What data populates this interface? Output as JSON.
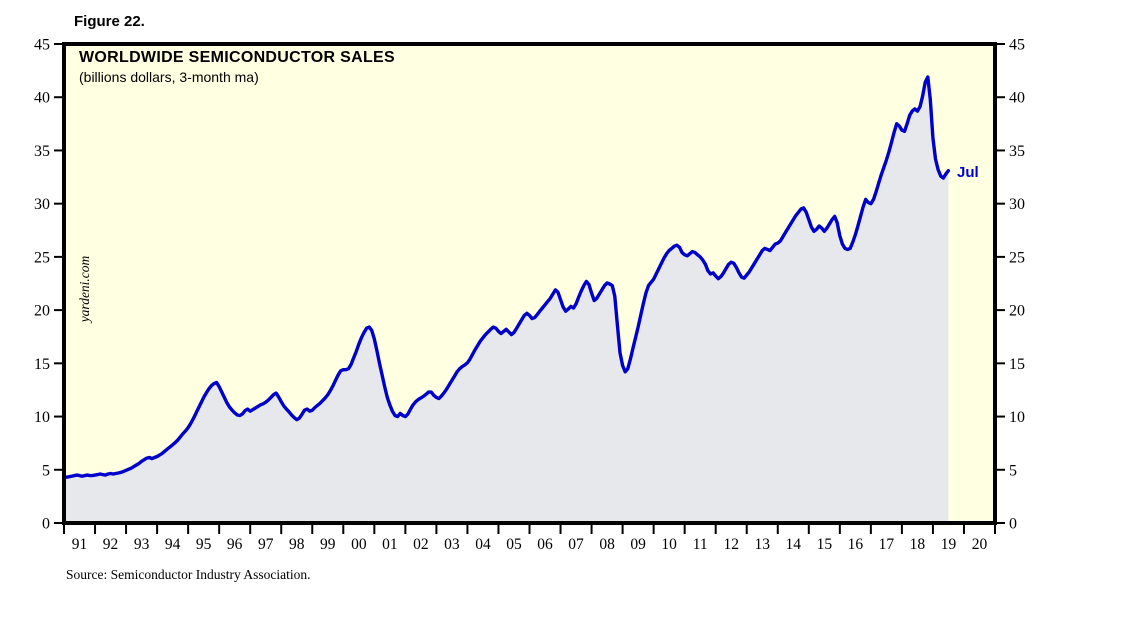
{
  "figure_label": "Figure 22.",
  "chart": {
    "title": "WORLDWIDE SEMICONDUCTOR SALES",
    "subtitle": "(billions dollars, 3-month ma)",
    "watermark": "yardeni.com",
    "end_label": "Jul",
    "source": "Source: Semiconductor Industry Association."
  },
  "colors": {
    "line": "#0000CD",
    "plot_background": "#FFFFE1",
    "area_fill": "#E7E8EC",
    "axis": "#000000",
    "annotation": "#0000CD"
  },
  "chart_data": {
    "type": "line",
    "title": "WORLDWIDE SEMICONDUCTOR SALES",
    "subtitle": "(billions dollars, 3-month ma)",
    "grid": false,
    "legend": "none",
    "ylim": [
      0,
      45
    ],
    "y_ticks": [
      0,
      5,
      10,
      15,
      20,
      25,
      30,
      35,
      40,
      45
    ],
    "y_axis_sides": [
      "left",
      "right"
    ],
    "x_axis_tick_labels": [
      "91",
      "92",
      "93",
      "94",
      "95",
      "96",
      "97",
      "98",
      "99",
      "00",
      "01",
      "02",
      "03",
      "04",
      "05",
      "06",
      "07",
      "08",
      "09",
      "10",
      "11",
      "12",
      "13",
      "14",
      "15",
      "16",
      "17",
      "18",
      "19",
      "20"
    ],
    "x_range_note": "x axis spans Jan 1991 through end of 2020; data plotted Jan 1991 to Jul 2019",
    "last_point_label": "Jul",
    "last_point_value": 33.1,
    "series": [
      {
        "name": "Worldwide semiconductor sales, 3-month moving average (billions of dollars)",
        "frequency": "monthly",
        "start": "1991-01",
        "end": "2019-07",
        "values": [
          4.3,
          4.3,
          4.35,
          4.4,
          4.45,
          4.5,
          4.45,
          4.4,
          4.45,
          4.5,
          4.45,
          4.45,
          4.5,
          4.55,
          4.6,
          4.55,
          4.5,
          4.6,
          4.65,
          4.6,
          4.65,
          4.7,
          4.75,
          4.85,
          4.95,
          5.05,
          5.15,
          5.3,
          5.45,
          5.6,
          5.8,
          5.95,
          6.1,
          6.15,
          6.05,
          6.15,
          6.25,
          6.4,
          6.55,
          6.75,
          6.95,
          7.15,
          7.35,
          7.55,
          7.8,
          8.1,
          8.4,
          8.65,
          8.95,
          9.35,
          9.8,
          10.3,
          10.8,
          11.3,
          11.8,
          12.2,
          12.6,
          12.9,
          13.1,
          13.2,
          12.8,
          12.3,
          11.8,
          11.3,
          10.9,
          10.6,
          10.35,
          10.15,
          10.1,
          10.25,
          10.55,
          10.7,
          10.5,
          10.65,
          10.8,
          10.95,
          11.1,
          11.2,
          11.35,
          11.55,
          11.8,
          12.05,
          12.2,
          11.85,
          11.4,
          11.0,
          10.7,
          10.45,
          10.15,
          9.9,
          9.7,
          9.85,
          10.2,
          10.6,
          10.7,
          10.5,
          10.6,
          10.85,
          11.05,
          11.25,
          11.5,
          11.75,
          12.05,
          12.45,
          12.9,
          13.4,
          13.9,
          14.3,
          14.4,
          14.4,
          14.5,
          14.9,
          15.5,
          16.1,
          16.8,
          17.4,
          17.9,
          18.3,
          18.4,
          18.1,
          17.3,
          16.2,
          15.0,
          13.9,
          12.8,
          11.8,
          11.1,
          10.5,
          10.1,
          10.0,
          10.3,
          10.1,
          10.0,
          10.25,
          10.7,
          11.1,
          11.4,
          11.6,
          11.75,
          11.9,
          12.1,
          12.3,
          12.3,
          12.0,
          11.8,
          11.7,
          11.95,
          12.25,
          12.6,
          13.0,
          13.4,
          13.8,
          14.2,
          14.5,
          14.7,
          14.85,
          15.05,
          15.4,
          15.85,
          16.3,
          16.7,
          17.1,
          17.4,
          17.7,
          17.95,
          18.2,
          18.4,
          18.3,
          18.0,
          17.8,
          18.0,
          18.2,
          17.95,
          17.7,
          17.9,
          18.3,
          18.7,
          19.1,
          19.5,
          19.7,
          19.5,
          19.2,
          19.3,
          19.6,
          19.9,
          20.2,
          20.5,
          20.8,
          21.1,
          21.5,
          21.9,
          21.7,
          21.0,
          20.3,
          19.9,
          20.1,
          20.35,
          20.2,
          20.6,
          21.2,
          21.8,
          22.3,
          22.7,
          22.4,
          21.6,
          20.9,
          21.1,
          21.5,
          21.9,
          22.3,
          22.55,
          22.45,
          22.3,
          21.3,
          18.6,
          16.0,
          14.8,
          14.2,
          14.5,
          15.4,
          16.4,
          17.4,
          18.4,
          19.5,
          20.6,
          21.6,
          22.3,
          22.6,
          22.9,
          23.4,
          23.9,
          24.4,
          24.9,
          25.3,
          25.6,
          25.8,
          26.0,
          26.1,
          25.9,
          25.4,
          25.2,
          25.1,
          25.3,
          25.5,
          25.4,
          25.2,
          25.0,
          24.7,
          24.3,
          23.7,
          23.4,
          23.5,
          23.2,
          22.95,
          23.15,
          23.5,
          23.9,
          24.3,
          24.5,
          24.4,
          24.0,
          23.5,
          23.1,
          23.0,
          23.3,
          23.6,
          24.0,
          24.4,
          24.8,
          25.2,
          25.6,
          25.8,
          25.7,
          25.6,
          25.9,
          26.2,
          26.3,
          26.5,
          26.9,
          27.3,
          27.7,
          28.1,
          28.5,
          28.9,
          29.2,
          29.5,
          29.6,
          29.2,
          28.5,
          27.8,
          27.4,
          27.6,
          27.9,
          27.7,
          27.4,
          27.7,
          28.1,
          28.5,
          28.8,
          28.2,
          27.0,
          26.2,
          25.8,
          25.7,
          25.8,
          26.4,
          27.1,
          27.9,
          28.8,
          29.7,
          30.4,
          30.1,
          30.0,
          30.4,
          31.1,
          31.9,
          32.7,
          33.4,
          34.1,
          34.9,
          35.8,
          36.7,
          37.5,
          37.3,
          36.9,
          36.8,
          37.5,
          38.3,
          38.7,
          38.9,
          38.7,
          39.1,
          40.1,
          41.4,
          41.9,
          39.8,
          36.2,
          34.2,
          33.2,
          32.6,
          32.4,
          32.8,
          33.1
        ]
      }
    ],
    "source": "Source: Semiconductor Industry Association.",
    "watermark": "yardeni.com"
  }
}
